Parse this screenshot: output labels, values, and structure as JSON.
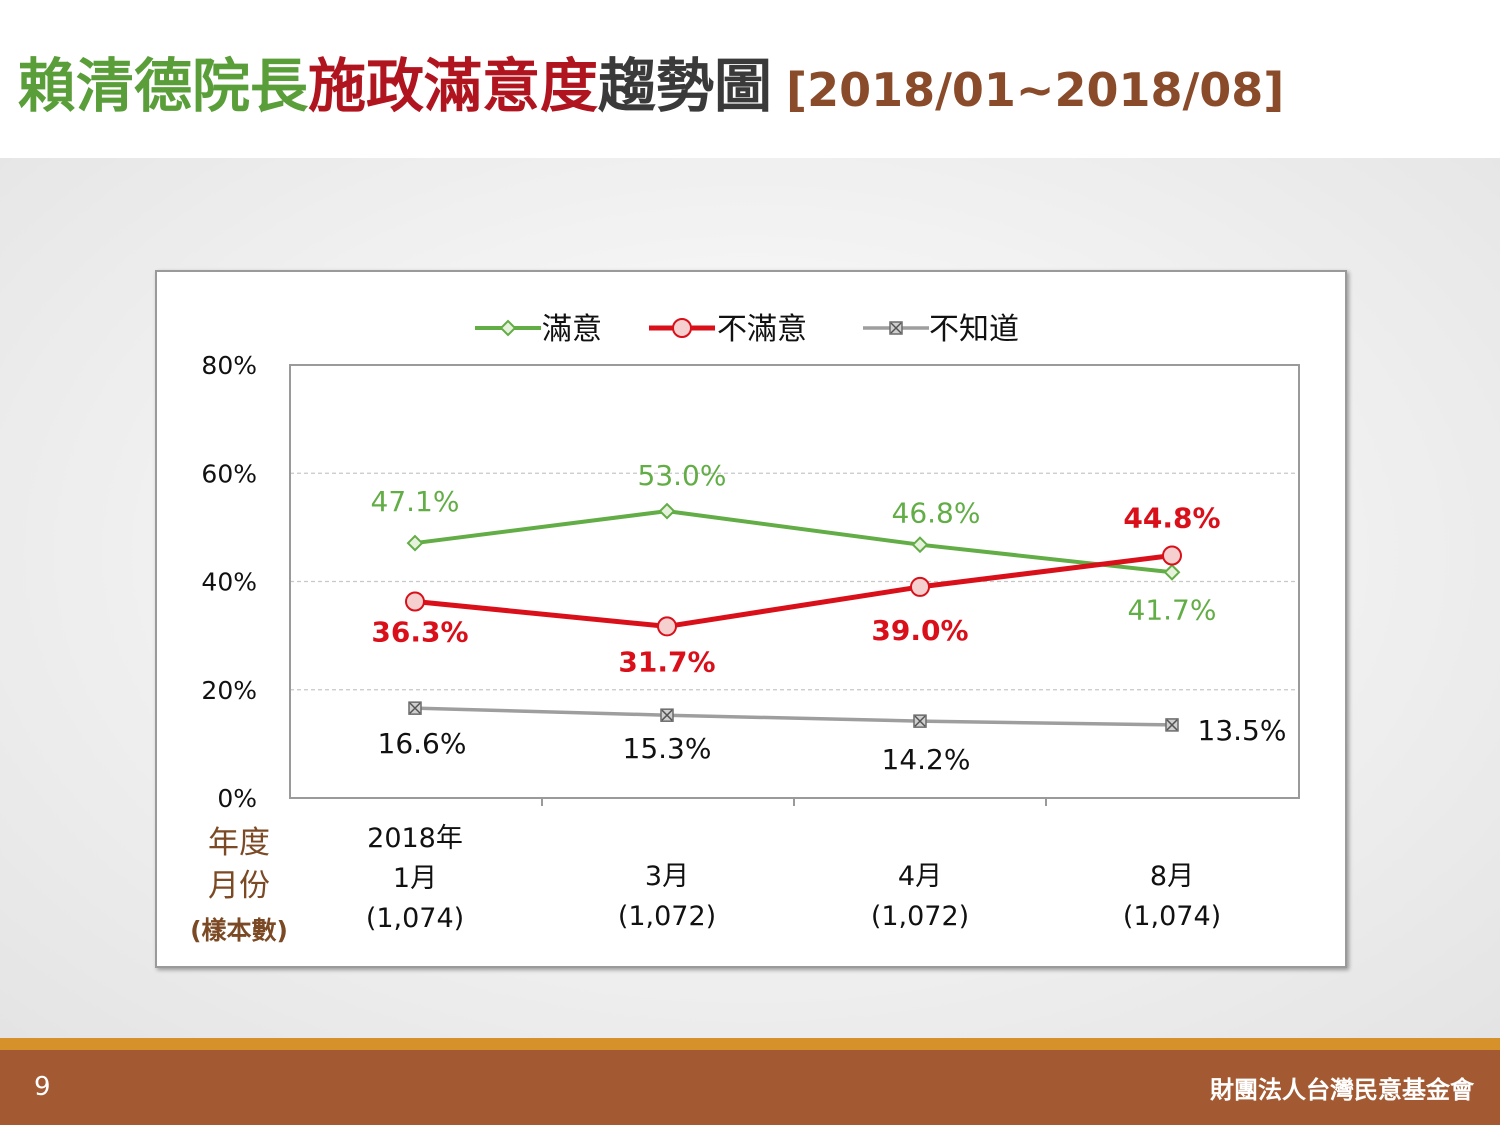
{
  "title": {
    "part1": "賴清德院長",
    "part2": "施政滿意度",
    "part3": "趨勢圖",
    "part4": "[2018/01~2018/08]"
  },
  "footer": {
    "page_number": "9",
    "organization": "財團法人台灣民意基金會"
  },
  "colors": {
    "satisfied": "#62ad46",
    "unsatisfied": "#d9101a",
    "unknown": "#9e9e9e",
    "axis_caption": "#7b4a25"
  },
  "chart_data": {
    "type": "line",
    "categories": [
      "2018年 1月",
      "3月",
      "4月",
      "8月"
    ],
    "category_lines": [
      [
        "2018年",
        "1月",
        "(1,074)"
      ],
      [
        "3月",
        "(1,072)"
      ],
      [
        "4月",
        "(1,072)"
      ],
      [
        "8月",
        "(1,074)"
      ]
    ],
    "x_caption": [
      "年度",
      "月份",
      "(樣本數)"
    ],
    "ylim": [
      0,
      80
    ],
    "yticks": [
      "0%",
      "20%",
      "40%",
      "60%",
      "80%"
    ],
    "grid": true,
    "legend_position": "top",
    "series": [
      {
        "name": "滿意",
        "values": [
          47.1,
          53.0,
          46.8,
          41.7
        ],
        "labels": [
          "47.1%",
          "53.0%",
          "46.8%",
          "41.7%"
        ],
        "marker": "diamond"
      },
      {
        "name": "不滿意",
        "values": [
          36.3,
          31.7,
          39.0,
          44.8
        ],
        "labels": [
          "36.3%",
          "31.7%",
          "39.0%",
          "44.8%"
        ],
        "marker": "circle"
      },
      {
        "name": "不知道",
        "values": [
          16.6,
          15.3,
          14.2,
          13.5
        ],
        "labels": [
          "16.6%",
          "15.3%",
          "14.2%",
          "13.5%"
        ],
        "marker": "square-x"
      }
    ]
  }
}
